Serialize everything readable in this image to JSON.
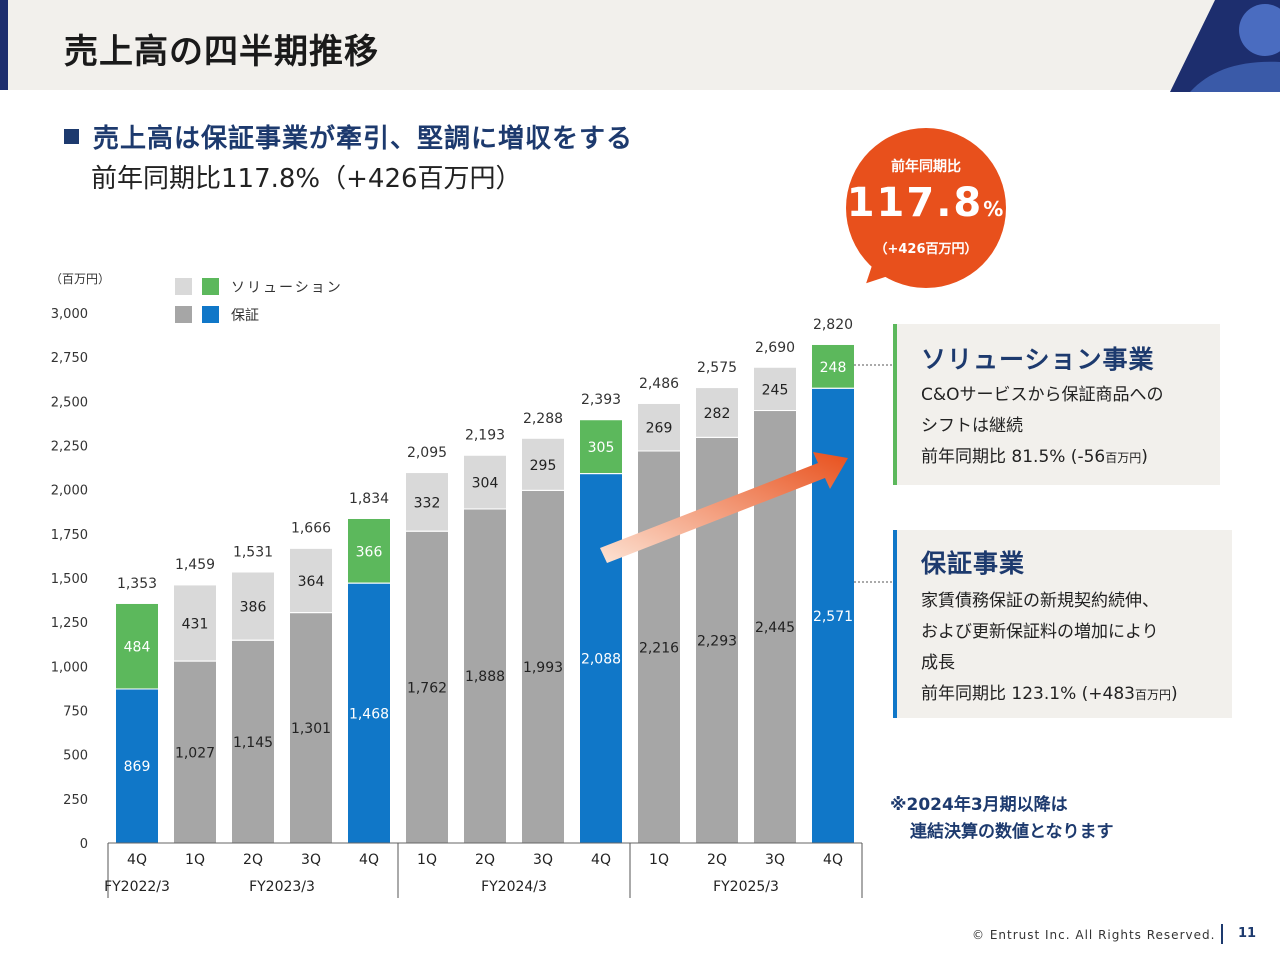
{
  "header": {
    "title": "売上高の四半期推移"
  },
  "headline": {
    "main": "売上高は保証事業が牽引、堅調に増収をする",
    "sub": "前年同期比117.8%（+426百万円）"
  },
  "badge": {
    "line1": "前年同期比",
    "value": "117.8",
    "unit": "%",
    "line3": "（+426百万円）"
  },
  "solution_box": {
    "title": "ソリューション事業",
    "line1": "C&Oサービスから保証商品への",
    "line2": "シフトは継続",
    "line3_main": "前年同期比 81.5% (-56",
    "line3_small": "百万円",
    "line3_end": ")"
  },
  "guarantee_box": {
    "title": "保証事業",
    "line1": "家賃債務保証の新規契約続伸、",
    "line2": "および更新保証料の増加により",
    "line3": "成長",
    "line4_main": "前年同期比 123.1% (+483",
    "line4_small": "百万円",
    "line4_end": ")"
  },
  "note": {
    "line1": "※2024年3月期以降は",
    "line2": "連結決算の数値となります"
  },
  "footer": {
    "copyright": "© Entrust Inc. All Rights Reserved.",
    "page": "11"
  },
  "colors": {
    "solution_highlight": "#5cb85c",
    "guarantee_highlight": "#1077c8",
    "solution_normal": "#d9d9d9",
    "guarantee_normal": "#a6a6a6",
    "accent_orange": "#e8501c",
    "navy": "#1d3a6e"
  },
  "chart_data": {
    "type": "bar",
    "stacked": true,
    "unit_label": "（百万円）",
    "ylim": [
      0,
      3000
    ],
    "yticks": [
      "0",
      "250",
      "500",
      "750",
      "1,000",
      "1,250",
      "1,500",
      "1,750",
      "2,000",
      "2,250",
      "2,500",
      "2,750",
      "3,000"
    ],
    "categories": [
      "4Q",
      "1Q",
      "2Q",
      "3Q",
      "4Q",
      "1Q",
      "2Q",
      "3Q",
      "4Q",
      "1Q",
      "2Q",
      "3Q",
      "4Q"
    ],
    "fiscal_years": [
      {
        "label": "FY2022/3",
        "start": 0,
        "end": 0
      },
      {
        "label": "FY2023/3",
        "start": 1,
        "end": 4
      },
      {
        "label": "FY2024/3",
        "start": 5,
        "end": 8
      },
      {
        "label": "FY2025/3",
        "start": 9,
        "end": 12
      }
    ],
    "highlighted": [
      0,
      4,
      8,
      12
    ],
    "series": [
      {
        "name": "保証",
        "values": [
          869,
          1027,
          1145,
          1301,
          1468,
          1762,
          1888,
          1993,
          2088,
          2216,
          2293,
          2445,
          2571
        ],
        "labels": [
          "869",
          "1,027",
          "1,145",
          "1,301",
          "1,468",
          "1,762",
          "1,888",
          "1,993",
          "2,088",
          "2,216",
          "2,293",
          "2,445",
          "2,571"
        ]
      },
      {
        "name": "ソリューション",
        "values": [
          484,
          431,
          386,
          364,
          366,
          332,
          304,
          295,
          305,
          269,
          282,
          245,
          248
        ],
        "labels": [
          "484",
          "431",
          "386",
          "364",
          "366",
          "332",
          "304",
          "295",
          "305",
          "269",
          "282",
          "245",
          "248"
        ]
      }
    ],
    "totals": [
      1353,
      1459,
      1531,
      1666,
      1834,
      2095,
      2193,
      2288,
      2393,
      2486,
      2575,
      2690,
      2820
    ],
    "total_labels": [
      "1,353",
      "1,459",
      "1,531",
      "1,666",
      "1,834",
      "2,095",
      "2,193",
      "2,288",
      "2,393",
      "2,486",
      "2,575",
      "2,690",
      "2,820"
    ]
  }
}
